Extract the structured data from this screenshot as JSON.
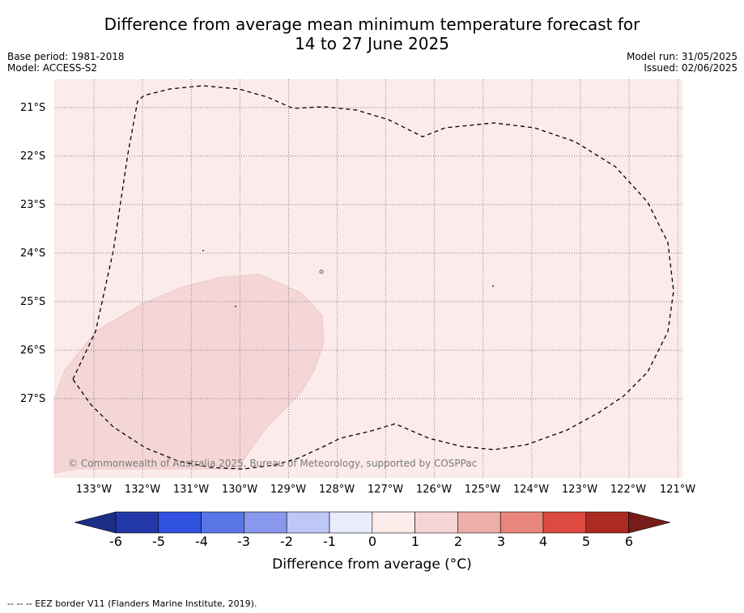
{
  "title_line1": "Difference from average mean minimum temperature forecast for",
  "title_line2": "14 to 27 June 2025",
  "base_period": "Base period: 1981-2018",
  "model": "Model: ACCESS-S2",
  "model_run": "Model run: 31/05/2025",
  "issued": "Issued: 02/06/2025",
  "lat_labels": [
    "21°S",
    "22°S",
    "23°S",
    "24°S",
    "25°S",
    "26°S",
    "27°S"
  ],
  "lon_labels": [
    "133°W",
    "132°W",
    "131°W",
    "130°W",
    "129°W",
    "128°W",
    "127°W",
    "126°W",
    "125°W",
    "124°W",
    "123°W",
    "122°W",
    "121°W"
  ],
  "copyright": "© Commonwealth of Australia 2025, Bureau of Meteorology, supported by COSPPac",
  "colorbar": {
    "ticks": [
      "-6",
      "-5",
      "-4",
      "-3",
      "-2",
      "-1",
      "0",
      "1",
      "2",
      "3",
      "4",
      "5",
      "6"
    ],
    "colors": [
      "#2338a8",
      "#3050e0",
      "#5a76e6",
      "#8898ec",
      "#bec8f6",
      "#e8ecfb",
      "#fcecea",
      "#f5d6d4",
      "#edaea8",
      "#e8857c",
      "#dc4a40",
      "#ab2a22"
    ],
    "low_color": "#1c2d86",
    "high_color": "#771c18",
    "label": "Difference from average (°C)"
  },
  "map_colors": {
    "background": "#fbebea",
    "warm_region": "#f5d6d6",
    "grid": "#555577"
  },
  "footer": "-- -- -- EEZ border V11 (Flanders Marine Institute, 2019)."
}
